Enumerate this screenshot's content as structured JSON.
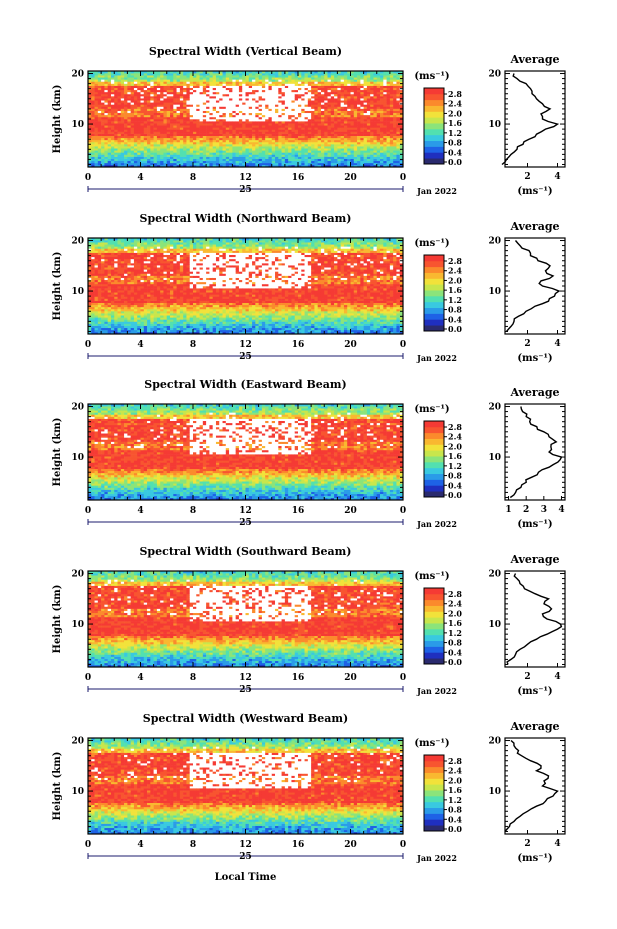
{
  "colors": {
    "scale": [
      "#2a2a6e",
      "#1f2fbf",
      "#1e62e6",
      "#2a9be8",
      "#39c9e0",
      "#52e0b0",
      "#8be47a",
      "#c8e64c",
      "#f2e23a",
      "#f9b830",
      "#fb8a2c",
      "#f85530",
      "#f53a34"
    ],
    "gap": "#ffffff",
    "axis": "#000000",
    "date_marker": "#1b1b6e"
  },
  "x_axis": {
    "ticks": [
      "0",
      "4",
      "8",
      "12",
      "16",
      "20",
      "0"
    ],
    "day_label": "25",
    "date_label": "Jan 2022",
    "title": "Local Time"
  },
  "y_axis": {
    "title": "Height (km)",
    "ticks": [
      "20",
      "10"
    ]
  },
  "colorbar": {
    "unit": "(ms⁻¹)",
    "ticks": [
      "2.8",
      "2.4",
      "2.0",
      "1.6",
      "1.2",
      "0.8",
      "0.4",
      "0.0"
    ]
  },
  "profile": {
    "title": "Average",
    "unit": "(ms⁻¹)",
    "y_ticks": [
      "20",
      "10"
    ]
  },
  "panels": [
    {
      "title": "Spectral Width (Vertical Beam)",
      "profile_x_ticks": [
        "2",
        "4"
      ]
    },
    {
      "title": "Spectral Width (Northward Beam)",
      "profile_x_ticks": [
        "2",
        "4"
      ]
    },
    {
      "title": "Spectral Width (Eastward Beam)",
      "profile_x_ticks": [
        "1",
        "2",
        "3",
        "4"
      ]
    },
    {
      "title": "Spectral Width (Southward Beam)",
      "profile_x_ticks": [
        "2",
        "4"
      ]
    },
    {
      "title": "Spectral Width (Westward Beam)",
      "profile_x_ticks": [
        "2",
        "4"
      ]
    }
  ],
  "chart_data": {
    "type": "heatmap",
    "x_range": [
      0,
      24
    ],
    "y_range": [
      1.5,
      20.5
    ],
    "value_range": [
      0.0,
      3.0
    ],
    "colorbar_ticks": [
      0.0,
      0.4,
      0.8,
      1.2,
      1.6,
      2.0,
      2.4,
      2.8
    ],
    "panels": [
      {
        "beam": "Vertical",
        "profile": {
          "height": [
            2,
            3,
            4,
            5,
            6,
            7,
            8,
            9,
            10,
            11,
            12,
            13,
            14,
            15,
            16,
            17,
            18,
            19,
            20
          ],
          "value": [
            0.3,
            0.6,
            0.9,
            1.3,
            1.7,
            2.1,
            2.6,
            3.2,
            4.0,
            3.0,
            2.9,
            3.5,
            3.0,
            2.6,
            2.3,
            2.2,
            1.9,
            1.3,
            1.1
          ]
        },
        "profile_xlim": [
          0.5,
          4.5
        ]
      },
      {
        "beam": "Northward",
        "profile": {
          "height": [
            2,
            3,
            4,
            5,
            6,
            7,
            8,
            9,
            10,
            11,
            12,
            13,
            14,
            15,
            16,
            17,
            18,
            19,
            20
          ],
          "value": [
            0.6,
            0.9,
            1.1,
            1.4,
            1.9,
            2.5,
            3.4,
            3.8,
            4.1,
            3.0,
            2.9,
            3.7,
            3.2,
            3.5,
            2.7,
            2.2,
            2.1,
            1.5,
            1.2
          ]
        },
        "profile_xlim": [
          0.5,
          4.5
        ]
      },
      {
        "beam": "Eastward",
        "profile": {
          "height": [
            2,
            3,
            4,
            5,
            6,
            7,
            8,
            9,
            10,
            11,
            12,
            13,
            14,
            15,
            16,
            17,
            18,
            19,
            20
          ],
          "value": [
            1.1,
            1.4,
            1.7,
            2.0,
            2.3,
            2.7,
            3.3,
            3.8,
            4.0,
            3.3,
            3.4,
            3.7,
            3.3,
            3.0,
            2.6,
            2.2,
            2.0,
            1.8,
            1.7
          ]
        },
        "profile_xlim": [
          0.8,
          4.2
        ]
      },
      {
        "beam": "Southward",
        "profile": {
          "height": [
            2,
            3,
            4,
            5,
            6,
            7,
            8,
            9,
            10,
            11,
            12,
            13,
            14,
            15,
            16,
            17,
            18,
            19,
            20
          ],
          "value": [
            0.7,
            0.9,
            1.2,
            1.5,
            2.0,
            2.6,
            3.3,
            4.0,
            4.2,
            3.3,
            3.0,
            3.6,
            3.1,
            3.4,
            2.5,
            1.8,
            1.5,
            1.3,
            1.2
          ]
        },
        "profile_xlim": [
          0.5,
          4.5
        ]
      },
      {
        "beam": "Westward",
        "profile": {
          "height": [
            2,
            3,
            4,
            5,
            6,
            7,
            8,
            9,
            10,
            11,
            12,
            13,
            14,
            15,
            16,
            17,
            18,
            19,
            20
          ],
          "value": [
            0.5,
            0.8,
            1.1,
            1.5,
            2.0,
            2.6,
            3.2,
            3.7,
            4.0,
            3.0,
            3.1,
            3.4,
            2.6,
            2.9,
            2.2,
            1.6,
            1.4,
            1.1,
            0.9
          ]
        },
        "profile_xlim": [
          0.5,
          4.5
        ]
      }
    ]
  }
}
